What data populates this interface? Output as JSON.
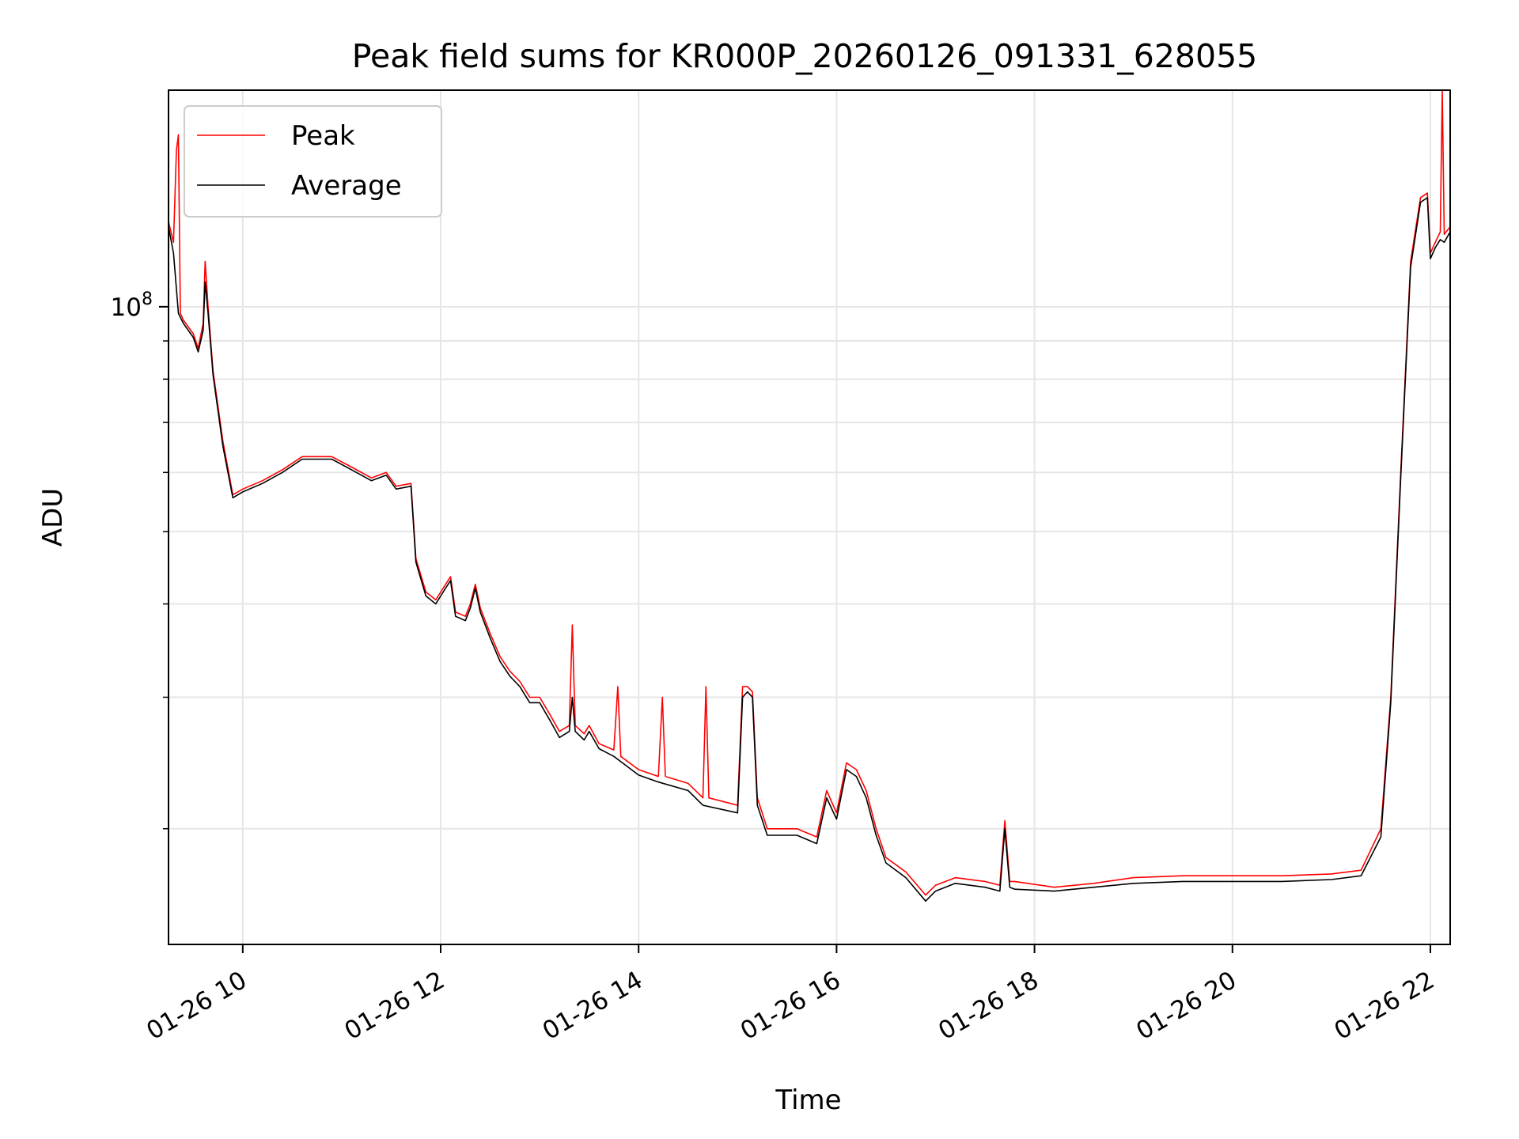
{
  "chart_data": {
    "type": "line",
    "title": "Peak field sums for KR000P_20260126_091331_628055",
    "xlabel": "Time",
    "ylabel": "ADU",
    "x_unit": "hours",
    "xlim": [
      9.25,
      22.2
    ],
    "ylim": [
      14000000,
      195000000
    ],
    "yscale": "log",
    "grid": true,
    "legend_position": "top-left",
    "x_ticks": [
      {
        "value": 10,
        "label": "01-26 10"
      },
      {
        "value": 12,
        "label": "01-26 12"
      },
      {
        "value": 14,
        "label": "01-26 14"
      },
      {
        "value": 16,
        "label": "01-26 16"
      },
      {
        "value": 18,
        "label": "01-26 18"
      },
      {
        "value": 20,
        "label": "01-26 20"
      },
      {
        "value": 22,
        "label": "01-26 22"
      }
    ],
    "y_major_ticks": [
      {
        "value": 100000000,
        "base": "10",
        "exponent": "8"
      }
    ],
    "y_minor_ticks": [
      20000000,
      30000000,
      40000000,
      50000000,
      60000000,
      70000000,
      80000000,
      90000000
    ],
    "series": [
      {
        "name": "Peak",
        "color": "#ff0000",
        "points": [
          [
            9.25,
            130000000
          ],
          [
            9.3,
            122000000
          ],
          [
            9.33,
            162000000
          ],
          [
            9.35,
            170000000
          ],
          [
            9.37,
            98000000
          ],
          [
            9.4,
            96000000
          ],
          [
            9.5,
            92000000
          ],
          [
            9.55,
            88000000
          ],
          [
            9.6,
            95000000
          ],
          [
            9.62,
            115000000
          ],
          [
            9.65,
            100000000
          ],
          [
            9.7,
            82000000
          ],
          [
            9.8,
            66000000
          ],
          [
            9.9,
            56000000
          ],
          [
            10.0,
            57000000
          ],
          [
            10.2,
            58500000
          ],
          [
            10.4,
            60500000
          ],
          [
            10.6,
            63000000
          ],
          [
            10.9,
            63000000
          ],
          [
            11.1,
            61000000
          ],
          [
            11.3,
            59000000
          ],
          [
            11.45,
            60000000
          ],
          [
            11.55,
            57500000
          ],
          [
            11.7,
            58000000
          ],
          [
            11.75,
            46000000
          ],
          [
            11.85,
            41500000
          ],
          [
            11.95,
            40500000
          ],
          [
            12.05,
            42500000
          ],
          [
            12.1,
            43500000
          ],
          [
            12.15,
            39000000
          ],
          [
            12.25,
            38500000
          ],
          [
            12.3,
            40000000
          ],
          [
            12.35,
            42500000
          ],
          [
            12.4,
            39500000
          ],
          [
            12.5,
            36500000
          ],
          [
            12.6,
            34000000
          ],
          [
            12.7,
            32500000
          ],
          [
            12.8,
            31500000
          ],
          [
            12.9,
            30000000
          ],
          [
            13.0,
            30000000
          ],
          [
            13.1,
            28500000
          ],
          [
            13.2,
            27000000
          ],
          [
            13.3,
            27500000
          ],
          [
            13.33,
            37500000
          ],
          [
            13.36,
            27500000
          ],
          [
            13.45,
            26800000
          ],
          [
            13.5,
            27500000
          ],
          [
            13.6,
            26000000
          ],
          [
            13.75,
            25500000
          ],
          [
            13.79,
            31000000
          ],
          [
            13.82,
            25000000
          ],
          [
            14.0,
            24000000
          ],
          [
            14.2,
            23500000
          ],
          [
            14.24,
            30000000
          ],
          [
            14.27,
            23500000
          ],
          [
            14.5,
            23000000
          ],
          [
            14.65,
            22000000
          ],
          [
            14.68,
            31000000
          ],
          [
            14.71,
            22000000
          ],
          [
            15.0,
            21500000
          ],
          [
            15.05,
            31000000
          ],
          [
            15.1,
            31000000
          ],
          [
            15.15,
            30500000
          ],
          [
            15.2,
            22000000
          ],
          [
            15.3,
            20000000
          ],
          [
            15.6,
            20000000
          ],
          [
            15.8,
            19500000
          ],
          [
            15.9,
            22500000
          ],
          [
            16.0,
            21000000
          ],
          [
            16.1,
            24500000
          ],
          [
            16.2,
            24000000
          ],
          [
            16.3,
            22500000
          ],
          [
            16.4,
            20000000
          ],
          [
            16.5,
            18300000
          ],
          [
            16.7,
            17500000
          ],
          [
            16.9,
            16300000
          ],
          [
            17.0,
            16800000
          ],
          [
            17.2,
            17200000
          ],
          [
            17.5,
            17000000
          ],
          [
            17.65,
            16800000
          ],
          [
            17.7,
            20500000
          ],
          [
            17.75,
            17000000
          ],
          [
            17.8,
            17000000
          ],
          [
            18.2,
            16700000
          ],
          [
            18.6,
            16900000
          ],
          [
            19.0,
            17200000
          ],
          [
            19.5,
            17300000
          ],
          [
            20.0,
            17300000
          ],
          [
            20.5,
            17300000
          ],
          [
            21.0,
            17400000
          ],
          [
            21.3,
            17600000
          ],
          [
            21.5,
            20000000
          ],
          [
            21.6,
            30000000
          ],
          [
            21.7,
            60000000
          ],
          [
            21.8,
            115000000
          ],
          [
            21.9,
            140000000
          ],
          [
            21.97,
            142000000
          ],
          [
            22.0,
            118000000
          ],
          [
            22.05,
            122000000
          ],
          [
            22.1,
            126000000
          ],
          [
            22.12,
            195000000
          ],
          [
            22.14,
            125000000
          ],
          [
            22.2,
            128000000
          ]
        ]
      },
      {
        "name": "Average",
        "color": "#000000",
        "points": [
          [
            9.25,
            128000000
          ],
          [
            9.3,
            118000000
          ],
          [
            9.35,
            98000000
          ],
          [
            9.4,
            95000000
          ],
          [
            9.5,
            91000000
          ],
          [
            9.55,
            87000000
          ],
          [
            9.6,
            93000000
          ],
          [
            9.62,
            108000000
          ],
          [
            9.65,
            98000000
          ],
          [
            9.7,
            81000000
          ],
          [
            9.8,
            65000000
          ],
          [
            9.9,
            55500000
          ],
          [
            10.0,
            56500000
          ],
          [
            10.2,
            58000000
          ],
          [
            10.4,
            60000000
          ],
          [
            10.6,
            62500000
          ],
          [
            10.9,
            62500000
          ],
          [
            11.1,
            60500000
          ],
          [
            11.3,
            58500000
          ],
          [
            11.45,
            59500000
          ],
          [
            11.55,
            57000000
          ],
          [
            11.7,
            57500000
          ],
          [
            11.75,
            45500000
          ],
          [
            11.85,
            41000000
          ],
          [
            11.95,
            40000000
          ],
          [
            12.05,
            42000000
          ],
          [
            12.1,
            43000000
          ],
          [
            12.15,
            38500000
          ],
          [
            12.25,
            38000000
          ],
          [
            12.3,
            39500000
          ],
          [
            12.35,
            42000000
          ],
          [
            12.4,
            39000000
          ],
          [
            12.5,
            36000000
          ],
          [
            12.6,
            33500000
          ],
          [
            12.7,
            32000000
          ],
          [
            12.8,
            31000000
          ],
          [
            12.9,
            29500000
          ],
          [
            13.0,
            29500000
          ],
          [
            13.1,
            28000000
          ],
          [
            13.2,
            26500000
          ],
          [
            13.3,
            27000000
          ],
          [
            13.33,
            30000000
          ],
          [
            13.36,
            27000000
          ],
          [
            13.45,
            26300000
          ],
          [
            13.5,
            27000000
          ],
          [
            13.6,
            25600000
          ],
          [
            13.75,
            25000000
          ],
          [
            13.82,
            24600000
          ],
          [
            14.0,
            23600000
          ],
          [
            14.2,
            23100000
          ],
          [
            14.5,
            22500000
          ],
          [
            14.65,
            21500000
          ],
          [
            15.0,
            21000000
          ],
          [
            15.05,
            30000000
          ],
          [
            15.1,
            30500000
          ],
          [
            15.15,
            30000000
          ],
          [
            15.2,
            21500000
          ],
          [
            15.3,
            19600000
          ],
          [
            15.6,
            19600000
          ],
          [
            15.8,
            19100000
          ],
          [
            15.9,
            22000000
          ],
          [
            16.0,
            20600000
          ],
          [
            16.1,
            24000000
          ],
          [
            16.2,
            23500000
          ],
          [
            16.3,
            22000000
          ],
          [
            16.4,
            19600000
          ],
          [
            16.5,
            18000000
          ],
          [
            16.7,
            17200000
          ],
          [
            16.9,
            16000000
          ],
          [
            17.0,
            16500000
          ],
          [
            17.2,
            16900000
          ],
          [
            17.5,
            16700000
          ],
          [
            17.65,
            16500000
          ],
          [
            17.7,
            20000000
          ],
          [
            17.75,
            16700000
          ],
          [
            17.8,
            16600000
          ],
          [
            18.2,
            16500000
          ],
          [
            18.6,
            16700000
          ],
          [
            19.0,
            16900000
          ],
          [
            19.5,
            17000000
          ],
          [
            20.0,
            17000000
          ],
          [
            20.5,
            17000000
          ],
          [
            21.0,
            17100000
          ],
          [
            21.3,
            17300000
          ],
          [
            21.5,
            19500000
          ],
          [
            21.6,
            29500000
          ],
          [
            21.7,
            59000000
          ],
          [
            21.8,
            113000000
          ],
          [
            21.9,
            138000000
          ],
          [
            21.97,
            140000000
          ],
          [
            22.0,
            116000000
          ],
          [
            22.05,
            120000000
          ],
          [
            22.1,
            123000000
          ],
          [
            22.14,
            122000000
          ],
          [
            22.2,
            126000000
          ]
        ]
      }
    ]
  }
}
